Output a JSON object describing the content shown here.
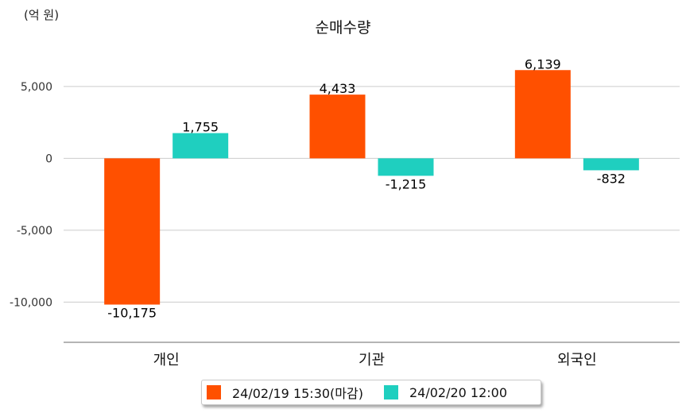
{
  "chart_data": {
    "type": "bar",
    "title": "순매수량",
    "unit_label": "(억 원)",
    "categories": [
      "개인",
      "기관",
      "외국인"
    ],
    "series": [
      {
        "name": "24/02/19 15:30(마감)",
        "color": "#ff5000",
        "values": [
          -10175,
          4433,
          6139
        ],
        "labels": [
          "-10,175",
          "4,433",
          "6,139"
        ]
      },
      {
        "name": "24/02/20 12:00",
        "color": "#1fcfbf",
        "values": [
          1755,
          -1215,
          -832
        ],
        "labels": [
          "1,755",
          "-1,215",
          "-832"
        ]
      }
    ],
    "yticks": [
      5000,
      0,
      -5000,
      -10000
    ],
    "ytick_labels": [
      "5,000",
      "0",
      "-5,000",
      "-10,000"
    ],
    "ylim": [
      -12800,
      7700
    ],
    "grid": true,
    "legend_position": "bottom"
  }
}
